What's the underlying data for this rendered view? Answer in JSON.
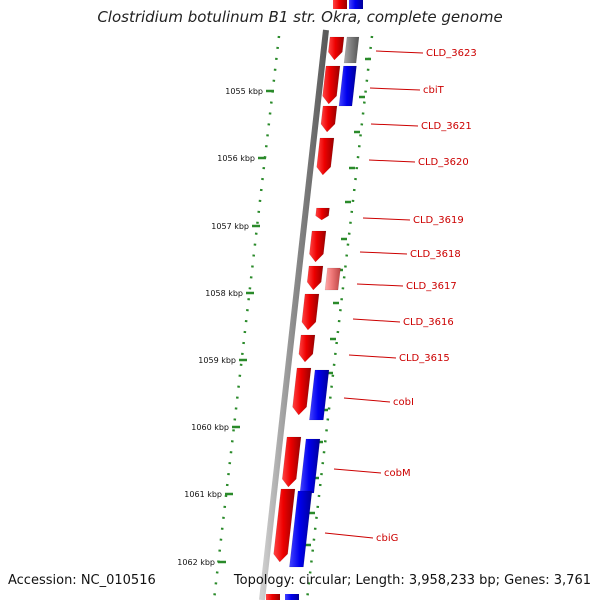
{
  "title": "Clostridium botulinum B1 str. Okra, complete genome",
  "footer": {
    "accession": "Accession: NC_010516",
    "summary": "Topology: circular; Length: 3,958,233 bp; Genes: 3,761"
  },
  "ruler": {
    "ticks": [
      {
        "label": "1055 kbp"
      },
      {
        "label": "1056 kbp"
      },
      {
        "label": "1057 kbp"
      },
      {
        "label": "1058 kbp"
      },
      {
        "label": "1059 kbp"
      },
      {
        "label": "1060 kbp"
      },
      {
        "label": "1061 kbp"
      },
      {
        "label": "1062 kbp"
      }
    ]
  },
  "genes": [
    {
      "label": "CLD_3623"
    },
    {
      "label": "cbiT"
    },
    {
      "label": "CLD_3621"
    },
    {
      "label": "CLD_3620"
    },
    {
      "label": "CLD_3619"
    },
    {
      "label": "CLD_3618"
    },
    {
      "label": "CLD_3617"
    },
    {
      "label": "CLD_3616"
    },
    {
      "label": "CLD_3615"
    },
    {
      "label": "cobI"
    },
    {
      "label": "cobM"
    },
    {
      "label": "cbiG"
    }
  ],
  "colors": {
    "gene_red": "#ee0000",
    "gene_blue": "#0000ee",
    "gene_gray": "#808080",
    "gene_pink": "#ee7777",
    "label_red": "#cc0000",
    "dot_green": "#2a8a2a",
    "backbone_gray": "#8c8c8c"
  }
}
